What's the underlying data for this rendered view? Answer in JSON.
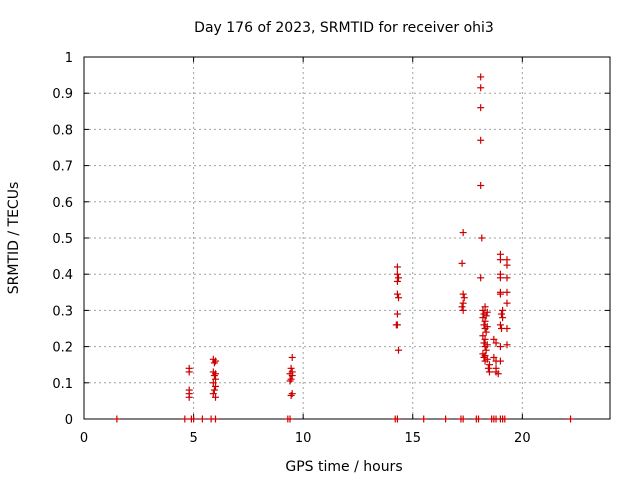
{
  "chart_data": {
    "type": "scatter",
    "title": "Day 176 of 2023, SRMTID for receiver ohi3",
    "xlabel": "GPS time / hours",
    "ylabel": "SRMTID / TECUs",
    "xlim": [
      0,
      24
    ],
    "ylim": [
      0,
      1
    ],
    "xticks": [
      0,
      5,
      10,
      15,
      20
    ],
    "yticks": [
      0,
      0.1,
      0.2,
      0.3,
      0.4,
      0.5,
      0.6,
      0.7,
      0.8,
      0.9,
      1
    ],
    "xtick_labels": [
      "0",
      "5",
      "10",
      "15",
      "20"
    ],
    "ytick_labels": [
      "0",
      "0.1",
      "0.2",
      "0.3",
      "0.4",
      "0.5",
      "0.6",
      "0.7",
      "0.8",
      "0.9",
      "1"
    ],
    "grid": true,
    "marker": "+",
    "color": "#cc0000",
    "series": [
      {
        "name": "SRMTID",
        "points": [
          [
            1.5,
            0
          ],
          [
            4.6,
            0
          ],
          [
            4.9,
            0
          ],
          [
            5.0,
            0
          ],
          [
            5.4,
            0
          ],
          [
            5.8,
            0
          ],
          [
            6.0,
            0
          ],
          [
            9.3,
            0
          ],
          [
            9.4,
            0
          ],
          [
            14.2,
            0
          ],
          [
            14.3,
            0
          ],
          [
            15.5,
            0
          ],
          [
            16.5,
            0
          ],
          [
            17.2,
            0
          ],
          [
            17.3,
            0
          ],
          [
            17.9,
            0
          ],
          [
            18.0,
            0
          ],
          [
            18.6,
            0
          ],
          [
            18.7,
            0
          ],
          [
            18.8,
            0
          ],
          [
            19.0,
            0
          ],
          [
            19.1,
            0
          ],
          [
            19.2,
            0
          ],
          [
            22.2,
            0
          ],
          [
            4.8,
            0.14
          ],
          [
            4.8,
            0.13
          ],
          [
            4.8,
            0.08
          ],
          [
            4.8,
            0.07
          ],
          [
            4.8,
            0.06
          ],
          [
            5.9,
            0.165
          ],
          [
            6.0,
            0.16
          ],
          [
            5.95,
            0.155
          ],
          [
            5.9,
            0.13
          ],
          [
            6.0,
            0.125
          ],
          [
            5.95,
            0.12
          ],
          [
            6.0,
            0.11
          ],
          [
            5.9,
            0.1
          ],
          [
            6.0,
            0.09
          ],
          [
            5.95,
            0.08
          ],
          [
            5.9,
            0.07
          ],
          [
            6.0,
            0.06
          ],
          [
            9.5,
            0.17
          ],
          [
            9.45,
            0.14
          ],
          [
            9.5,
            0.13
          ],
          [
            9.4,
            0.125
          ],
          [
            9.5,
            0.12
          ],
          [
            9.45,
            0.11
          ],
          [
            9.4,
            0.105
          ],
          [
            9.5,
            0.07
          ],
          [
            9.45,
            0.065
          ],
          [
            14.3,
            0.42
          ],
          [
            14.3,
            0.4
          ],
          [
            14.35,
            0.39
          ],
          [
            14.3,
            0.38
          ],
          [
            14.3,
            0.345
          ],
          [
            14.35,
            0.335
          ],
          [
            14.3,
            0.29
          ],
          [
            14.25,
            0.26
          ],
          [
            14.3,
            0.26
          ],
          [
            14.35,
            0.19
          ],
          [
            17.3,
            0.515
          ],
          [
            17.25,
            0.43
          ],
          [
            17.3,
            0.345
          ],
          [
            17.35,
            0.335
          ],
          [
            17.3,
            0.32
          ],
          [
            17.25,
            0.31
          ],
          [
            17.3,
            0.3
          ],
          [
            18.1,
            0.945
          ],
          [
            18.1,
            0.915
          ],
          [
            18.1,
            0.86
          ],
          [
            18.1,
            0.77
          ],
          [
            18.1,
            0.645
          ],
          [
            18.15,
            0.5
          ],
          [
            18.1,
            0.39
          ],
          [
            18.3,
            0.31
          ],
          [
            18.2,
            0.3
          ],
          [
            18.4,
            0.295
          ],
          [
            18.25,
            0.29
          ],
          [
            18.35,
            0.285
          ],
          [
            18.2,
            0.28
          ],
          [
            18.3,
            0.27
          ],
          [
            18.25,
            0.26
          ],
          [
            18.4,
            0.255
          ],
          [
            18.3,
            0.25
          ],
          [
            18.35,
            0.24
          ],
          [
            18.2,
            0.23
          ],
          [
            18.3,
            0.22
          ],
          [
            18.25,
            0.21
          ],
          [
            18.4,
            0.205
          ],
          [
            18.3,
            0.2
          ],
          [
            18.35,
            0.19
          ],
          [
            18.2,
            0.18
          ],
          [
            18.3,
            0.175
          ],
          [
            18.25,
            0.17
          ],
          [
            18.4,
            0.165
          ],
          [
            18.3,
            0.16
          ],
          [
            18.5,
            0.15
          ],
          [
            18.45,
            0.14
          ],
          [
            18.5,
            0.13
          ],
          [
            18.7,
            0.22
          ],
          [
            18.8,
            0.21
          ],
          [
            18.7,
            0.17
          ],
          [
            18.8,
            0.16
          ],
          [
            18.8,
            0.14
          ],
          [
            18.8,
            0.13
          ],
          [
            18.9,
            0.125
          ],
          [
            19.0,
            0.455
          ],
          [
            19.0,
            0.44
          ],
          [
            19.0,
            0.4
          ],
          [
            19.0,
            0.39
          ],
          [
            19.0,
            0.35
          ],
          [
            19.0,
            0.345
          ],
          [
            19.1,
            0.3
          ],
          [
            19.05,
            0.29
          ],
          [
            19.1,
            0.28
          ],
          [
            19.0,
            0.26
          ],
          [
            19.05,
            0.25
          ],
          [
            19.0,
            0.2
          ],
          [
            19.0,
            0.16
          ],
          [
            19.3,
            0.44
          ],
          [
            19.3,
            0.425
          ],
          [
            19.3,
            0.39
          ],
          [
            19.3,
            0.35
          ],
          [
            19.3,
            0.32
          ],
          [
            19.3,
            0.25
          ],
          [
            19.3,
            0.205
          ]
        ]
      }
    ]
  }
}
